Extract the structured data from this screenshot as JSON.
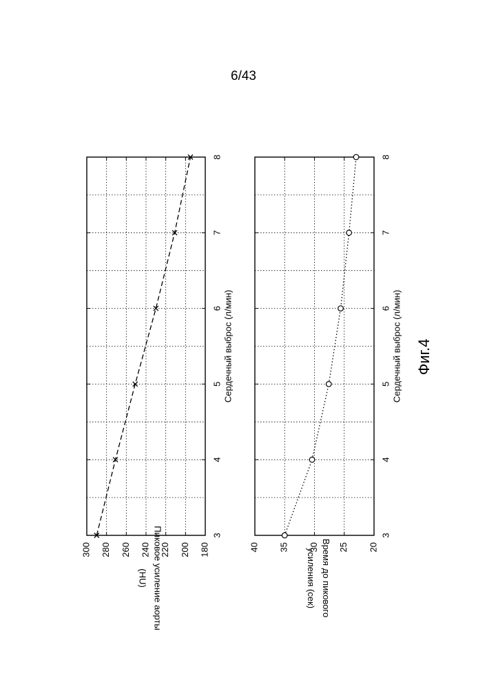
{
  "page_number": "6/43",
  "figure_label": "Фиг.4",
  "chart_data": [
    {
      "type": "line",
      "x": [
        3,
        4,
        5,
        6,
        7,
        8
      ],
      "series": [
        {
          "values": [
            290,
            271,
            251,
            230,
            211,
            195
          ],
          "marker": "x",
          "line_style": "dashed"
        }
      ],
      "xlabel": "Сердечный выброс (л/мин)",
      "ylabel": [
        "Пиковое усиление аорты",
        "(HU)"
      ],
      "xlim": [
        3,
        8
      ],
      "ylim": [
        180,
        300
      ],
      "xticks": [
        "3",
        "4",
        "5",
        "6",
        "7",
        "8"
      ],
      "yticks": [
        "180",
        "200",
        "220",
        "240",
        "260",
        "280",
        "300"
      ],
      "grid": true
    },
    {
      "type": "line",
      "x": [
        3,
        4,
        5,
        6,
        7,
        8
      ],
      "series": [
        {
          "values": [
            35.0,
            30.4,
            27.6,
            25.6,
            24.2,
            23.0
          ],
          "marker": "o",
          "line_style": "dotted"
        }
      ],
      "xlabel": "Сердечный выброс (л/мин)",
      "ylabel": [
        "Время до пикового",
        "усиления (сек)"
      ],
      "xlim": [
        3,
        8
      ],
      "ylim": [
        20,
        40
      ],
      "xticks": [
        "3",
        "4",
        "5",
        "6",
        "7",
        "8"
      ],
      "yticks": [
        "20",
        "25",
        "30",
        "35",
        "40"
      ],
      "grid": true
    }
  ]
}
